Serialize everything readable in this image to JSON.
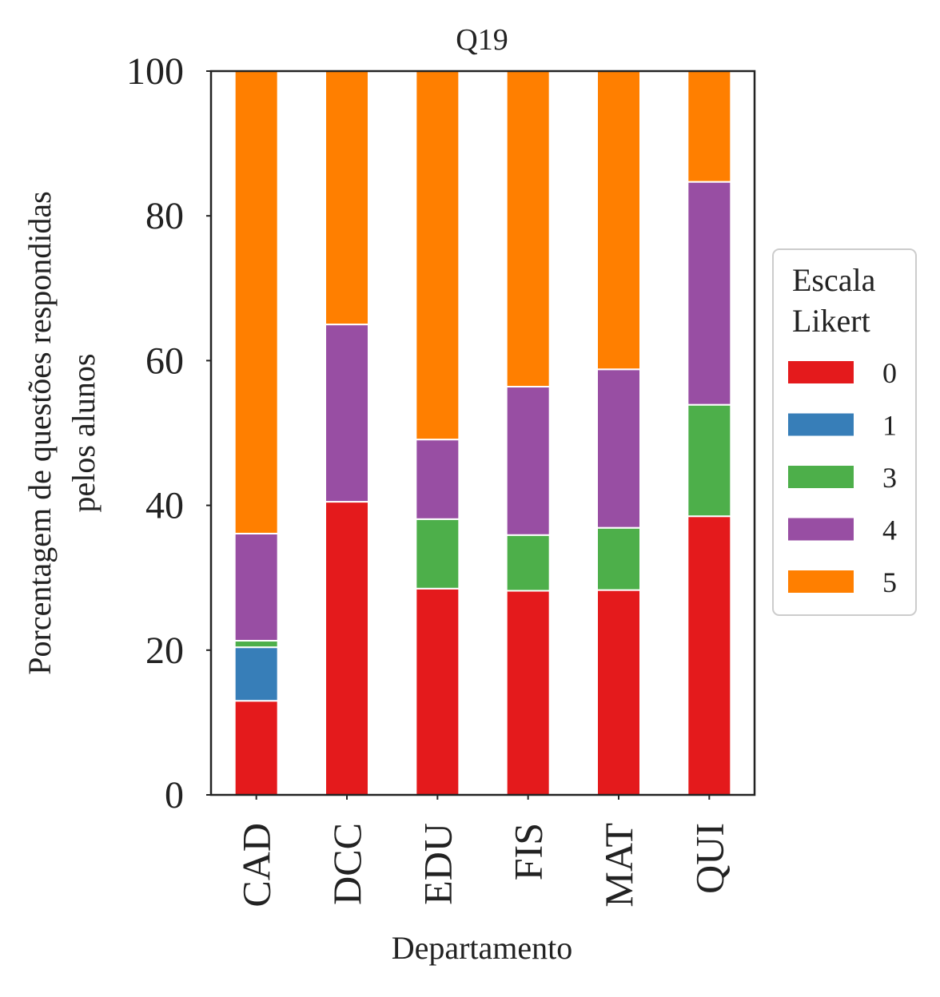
{
  "chart_data": {
    "type": "bar",
    "stacked": true,
    "title": "Q19",
    "xlabel": "Departamento",
    "ylabel_lines": [
      "Porcentagem de questões respondidas",
      "pelos alunos"
    ],
    "ylim": [
      0,
      100
    ],
    "yticks": [
      0,
      20,
      40,
      60,
      80,
      100
    ],
    "grid": false,
    "categories": [
      "CAD",
      "DCC",
      "EDU",
      "FIS",
      "MAT",
      "QUI"
    ],
    "series": [
      {
        "name": "0",
        "color": "#e41a1c",
        "values": [
          13.0,
          40.5,
          28.5,
          28.2,
          28.3,
          38.5
        ]
      },
      {
        "name": "1",
        "color": "#377eb8",
        "values": [
          7.4,
          0,
          0,
          0,
          0,
          0
        ]
      },
      {
        "name": "3",
        "color": "#4daf4a",
        "values": [
          0.9,
          0,
          9.6,
          7.7,
          8.6,
          15.4
        ]
      },
      {
        "name": "4",
        "color": "#984ea3",
        "values": [
          14.8,
          24.5,
          11.0,
          20.5,
          21.9,
          30.8
        ]
      },
      {
        "name": "5",
        "color": "#ff7f00",
        "values": [
          63.9,
          35.0,
          50.9,
          43.6,
          41.2,
          15.3
        ]
      }
    ],
    "legend": {
      "title_lines": [
        "Escala",
        "Likert"
      ],
      "placement": "right-center"
    }
  }
}
